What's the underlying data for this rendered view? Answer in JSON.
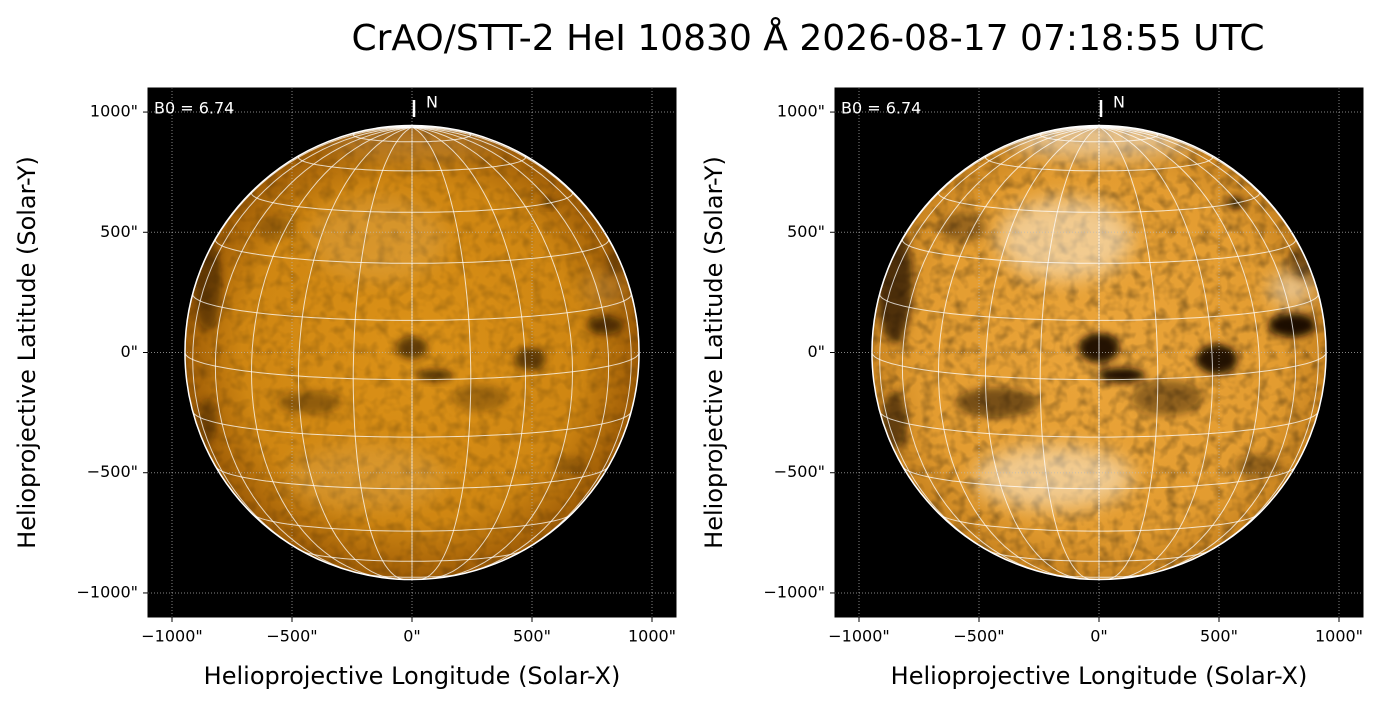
{
  "title": "CrAO/STT-2 HeI 10830 Å 2026-08-17 07:18:55 UTC",
  "chart_data": [
    {
      "type": "image",
      "annotation": "B0 = 6.74",
      "north_label": "N",
      "xlabel": "Helioprojective Longitude (Solar-X)",
      "ylabel": "Helioprojective Latitude (Solar-Y)",
      "xlim": [
        -1100,
        1100
      ],
      "ylim": [
        -1100,
        1100
      ],
      "xticks": [
        {
          "value": -1000,
          "label": "−1000\""
        },
        {
          "value": -500,
          "label": "−500\""
        },
        {
          "value": 0,
          "label": "0\""
        },
        {
          "value": 500,
          "label": "500\""
        },
        {
          "value": 1000,
          "label": "1000\""
        }
      ],
      "yticks": [
        {
          "value": -1000,
          "label": "−1000\""
        },
        {
          "value": -500,
          "label": "−500\""
        },
        {
          "value": 0,
          "label": "0\""
        },
        {
          "value": 500,
          "label": "500\""
        },
        {
          "value": 1000,
          "label": "1000\""
        }
      ],
      "grid": true
    },
    {
      "type": "image",
      "annotation": "B0 = 6.74",
      "north_label": "N",
      "xlabel": "Helioprojective Longitude (Solar-X)",
      "ylabel": "Helioprojective Latitude (Solar-Y)",
      "xlim": [
        -1100,
        1100
      ],
      "ylim": [
        -1100,
        1100
      ],
      "xticks": [
        {
          "value": -1000,
          "label": "−1000\""
        },
        {
          "value": -500,
          "label": "−500\""
        },
        {
          "value": 0,
          "label": "0\""
        },
        {
          "value": 500,
          "label": "500\""
        },
        {
          "value": 1000,
          "label": "1000\""
        }
      ],
      "yticks": [
        {
          "value": -1000,
          "label": "−1000\""
        },
        {
          "value": -500,
          "label": "−500\""
        },
        {
          "value": 0,
          "label": "0\""
        },
        {
          "value": 500,
          "label": "500\""
        },
        {
          "value": 1000,
          "label": "1000\""
        }
      ],
      "grid": true
    }
  ]
}
